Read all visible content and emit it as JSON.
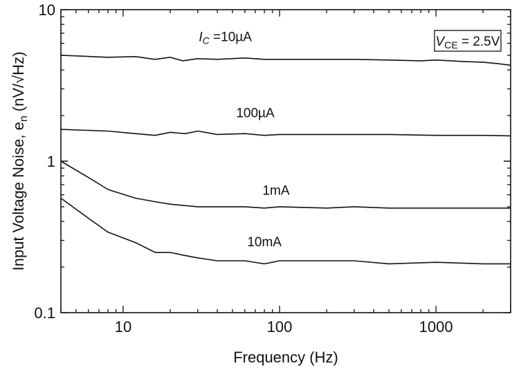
{
  "chart_data": {
    "type": "line",
    "title": "",
    "xlabel": "Frequency (Hz)",
    "ylabel": "Input Voltage Noise, e",
    "ylabel_sub": "n",
    "ylabel_unit": "(nV/√Hz)",
    "xscale": "log",
    "yscale": "log",
    "xlim": [
      4,
      3000
    ],
    "ylim": [
      0.1,
      10
    ],
    "x_ticks": [
      {
        "value": 10,
        "label": "10"
      },
      {
        "value": 100,
        "label": "100"
      },
      {
        "value": 1000,
        "label": "1000"
      }
    ],
    "y_ticks": [
      {
        "value": 0.1,
        "label": "0.1"
      },
      {
        "value": 1,
        "label": "1"
      },
      {
        "value": 10,
        "label": "10"
      }
    ],
    "grid": false,
    "annotation": {
      "main": "V",
      "sub": "CE",
      "rest": " = 2.5V"
    },
    "series": [
      {
        "label_main": "I",
        "label_sub": "C",
        "label_rest": " =10µA",
        "label_at": [
          45,
          6.2
        ],
        "x": [
          4,
          8,
          12,
          16,
          20,
          24,
          30,
          40,
          60,
          80,
          100,
          200,
          300,
          500,
          800,
          1000,
          1500,
          2000,
          2500,
          3000
        ],
        "y": [
          5.0,
          4.85,
          4.9,
          4.7,
          4.85,
          4.6,
          4.75,
          4.7,
          4.8,
          4.7,
          4.7,
          4.7,
          4.7,
          4.65,
          4.6,
          4.65,
          4.55,
          4.5,
          4.4,
          4.3
        ]
      },
      {
        "label_main": "100µA",
        "label_sub": "",
        "label_rest": "",
        "label_at": [
          70,
          1.95
        ],
        "x": [
          4,
          8,
          12,
          16,
          20,
          25,
          30,
          40,
          60,
          80,
          100,
          200,
          300,
          500,
          1000,
          2000,
          3000
        ],
        "y": [
          1.62,
          1.58,
          1.52,
          1.48,
          1.55,
          1.52,
          1.58,
          1.5,
          1.52,
          1.48,
          1.5,
          1.5,
          1.5,
          1.5,
          1.48,
          1.48,
          1.47
        ]
      },
      {
        "label_main": "1mA",
        "label_sub": "",
        "label_rest": "",
        "label_at": [
          95,
          0.6
        ],
        "x": [
          4,
          6,
          8,
          12,
          16,
          20,
          30,
          40,
          60,
          80,
          100,
          200,
          300,
          500,
          1000,
          2000,
          3000
        ],
        "y": [
          1.0,
          0.78,
          0.65,
          0.57,
          0.54,
          0.52,
          0.5,
          0.5,
          0.5,
          0.49,
          0.5,
          0.49,
          0.5,
          0.49,
          0.49,
          0.49,
          0.49
        ]
      },
      {
        "label_main": "10mA",
        "label_sub": "",
        "label_rest": "",
        "label_at": [
          80,
          0.275
        ],
        "x": [
          4,
          6,
          8,
          12,
          16,
          20,
          24,
          30,
          40,
          60,
          80,
          100,
          200,
          300,
          500,
          1000,
          2000,
          3000
        ],
        "y": [
          0.57,
          0.42,
          0.34,
          0.29,
          0.25,
          0.25,
          0.24,
          0.23,
          0.22,
          0.22,
          0.21,
          0.22,
          0.22,
          0.22,
          0.21,
          0.215,
          0.21,
          0.21
        ]
      }
    ]
  }
}
